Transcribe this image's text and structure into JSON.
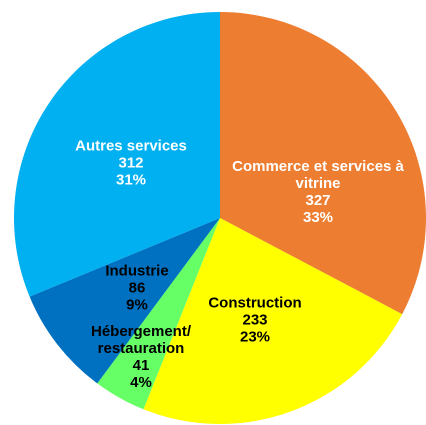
{
  "chart_data": {
    "type": "pie",
    "categories": [
      "Commerce et services à vitrine",
      "Construction",
      "Hébergement/ restauration",
      "Industrie",
      "Autres services"
    ],
    "values": [
      327,
      233,
      41,
      86,
      312
    ],
    "percent_values": [
      33,
      23,
      4,
      9,
      31
    ],
    "percent_labels": [
      "33%",
      "23%",
      "4%",
      "9%",
      "31%"
    ],
    "colors": [
      "#ed7d31",
      "#ffff00",
      "#66ff66",
      "#0070c0",
      "#00b0f0"
    ],
    "label_colors": [
      "#ffffff",
      "#000000",
      "#000000",
      "#000000",
      "#ffffff"
    ]
  }
}
